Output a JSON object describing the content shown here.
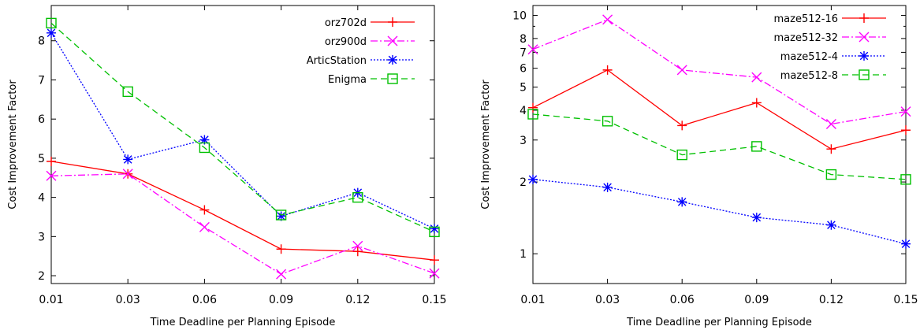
{
  "chart_data": [
    {
      "type": "line",
      "title": "",
      "xlabel": "Time Deadline per Planning Episode",
      "ylabel": "Cost Improvement Factor",
      "x": [
        0.01,
        0.03,
        0.06,
        0.09,
        0.12,
        0.15
      ],
      "x_tick_labels": [
        "0.01",
        "0.03",
        "0.06",
        "0.09",
        "0.12",
        "0.15"
      ],
      "y_scale": "linear",
      "ylim": [
        1.8,
        8.9
      ],
      "y_ticks": [
        2,
        3,
        4,
        5,
        6,
        7,
        8
      ],
      "grid": false,
      "legend_position": "top-right",
      "series": [
        {
          "name": "orz702d",
          "marker": "plus",
          "dash": "solid",
          "color": "#ff0000",
          "values": [
            4.92,
            4.6,
            3.68,
            2.68,
            2.62,
            2.4
          ]
        },
        {
          "name": "orz900d",
          "marker": "x",
          "dash": "dash-dot",
          "color": "#ff00ff",
          "values": [
            4.55,
            4.6,
            3.24,
            2.04,
            2.76,
            2.06
          ]
        },
        {
          "name": "ArticStation",
          "marker": "star",
          "dash": "dotted",
          "color": "#0000ff",
          "values": [
            8.2,
            4.97,
            5.47,
            3.52,
            4.12,
            3.2
          ]
        },
        {
          "name": "Enigma",
          "marker": "square",
          "dash": "dashed",
          "color": "#00c000",
          "values": [
            8.45,
            6.7,
            5.27,
            3.55,
            4.0,
            3.12
          ]
        }
      ]
    },
    {
      "type": "line",
      "title": "",
      "xlabel": "Time Deadline per Planning Episode",
      "ylabel": "Cost Improvement Factor",
      "x": [
        0.01,
        0.03,
        0.06,
        0.09,
        0.12,
        0.15
      ],
      "x_tick_labels": [
        "0.01",
        "0.03",
        "0.06",
        "0.09",
        "0.12",
        "0.15"
      ],
      "y_scale": "log",
      "ylim": [
        0.75,
        11
      ],
      "y_ticks": [
        1,
        2,
        3,
        4,
        5,
        6,
        7,
        8,
        10
      ],
      "grid": false,
      "legend_position": "top-right",
      "series": [
        {
          "name": "maze512-16",
          "marker": "plus",
          "dash": "solid",
          "color": "#ff0000",
          "values": [
            4.1,
            5.9,
            3.45,
            4.3,
            2.75,
            3.3
          ]
        },
        {
          "name": "maze512-32",
          "marker": "x",
          "dash": "dash-dot",
          "color": "#ff00ff",
          "values": [
            7.2,
            9.6,
            5.9,
            5.5,
            3.5,
            3.95
          ]
        },
        {
          "name": "maze512-4",
          "marker": "star",
          "dash": "dotted",
          "color": "#0000ff",
          "values": [
            2.05,
            1.9,
            1.65,
            1.42,
            1.32,
            1.1
          ]
        },
        {
          "name": "maze512-8",
          "marker": "square",
          "dash": "dashed",
          "color": "#00c000",
          "values": [
            3.85,
            3.6,
            2.6,
            2.82,
            2.15,
            2.05
          ]
        }
      ]
    }
  ]
}
